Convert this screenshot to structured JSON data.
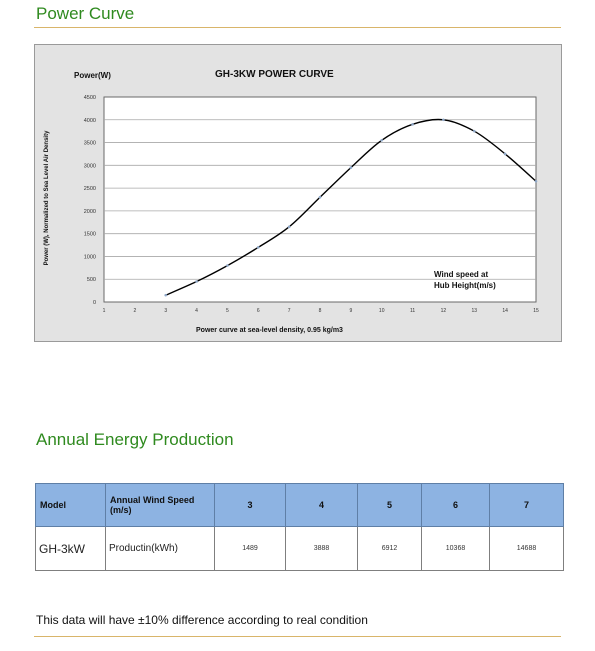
{
  "power_curve": {
    "title": "Power Curve"
  },
  "chart_data": {
    "type": "line",
    "title": "GH-3KW  POWER CURVE",
    "ylabel_top": "Power(W)",
    "ylabel_side": "Power (W), Normalized to Sea Level Air Density",
    "xlabel": "Power curve at sea-level density, 0.95 kg/m3",
    "annotation_lines": [
      "Wind  speed at",
      "Hub Height(m/s)"
    ],
    "xlim": [
      1,
      15
    ],
    "ylim": [
      0,
      4500
    ],
    "x_ticks": [
      "1",
      "2",
      "3",
      "4",
      "5",
      "6",
      "7",
      "8",
      "9",
      "10",
      "11",
      "12",
      "13",
      "14",
      "15"
    ],
    "y_ticks": [
      "0",
      "500",
      "1000",
      "1500",
      "2000",
      "2500",
      "3000",
      "3500",
      "4000",
      "4500"
    ],
    "grid": true,
    "series": [
      {
        "x": [
          3,
          4,
          5,
          6,
          7,
          8,
          9,
          10,
          11,
          12,
          13,
          14,
          15
        ],
        "y": [
          150,
          450,
          800,
          1200,
          1650,
          2300,
          2950,
          3550,
          3900,
          4000,
          3750,
          3250,
          2650
        ]
      }
    ],
    "colors": {
      "line": "#000000",
      "marker": "#8fa8c8",
      "plot_bg": "#ffffff",
      "panel_bg": "#e3e3e3"
    }
  },
  "energy": {
    "title": "Annual Energy Production",
    "header": {
      "model": "Model",
      "speed_label": "Annual Wind Speed (m/s)",
      "speeds": [
        "3",
        "4",
        "5",
        "6",
        "7"
      ]
    },
    "row": {
      "model": "GH-3kW",
      "label": "Productin(kWh)",
      "values": [
        "1489",
        "3888",
        "6912",
        "10368",
        "14688"
      ]
    }
  },
  "footnote": "This data will have ±10% difference according to real condition"
}
